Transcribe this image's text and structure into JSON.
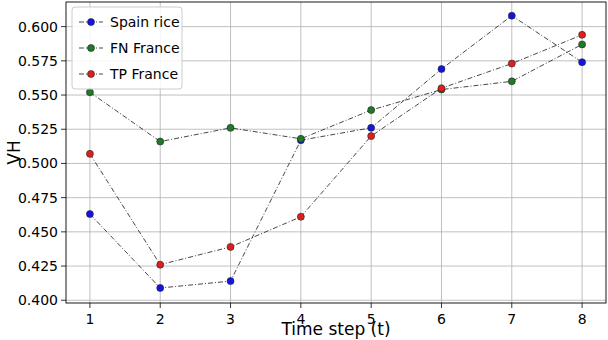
{
  "chart_data": {
    "type": "line",
    "x_label": "Time step (t)",
    "y_label": "VH",
    "x": [
      1,
      2,
      3,
      4,
      5,
      6,
      7,
      8
    ],
    "xlim": [
      0.66,
      8.34
    ],
    "xticks": [
      1,
      2,
      3,
      4,
      5,
      6,
      7,
      8
    ],
    "ylim": [
      0.398,
      0.618
    ],
    "yticks": [
      {
        "value": 0.4,
        "label": "0.400"
      },
      0.425,
      {
        "value": 0.45,
        "label": "0.450"
      },
      0.475,
      {
        "value": 0.5,
        "label": "0.500"
      },
      0.525,
      {
        "value": 0.55,
        "label": "0.550"
      },
      0.575,
      {
        "value": 0.6,
        "label": "0.600"
      }
    ],
    "grid": true,
    "legend": "upper-left",
    "marker": "circle",
    "line_style": "dashdot",
    "series": [
      {
        "name": "Spain rice",
        "color": "#1414e6",
        "values": [
          0.463,
          0.409,
          0.414,
          0.517,
          0.526,
          0.569,
          0.608,
          0.574
        ]
      },
      {
        "name": "FN France",
        "color": "#1f7a26",
        "values": [
          0.552,
          0.516,
          0.526,
          0.518,
          0.539,
          0.554,
          0.56,
          0.587
        ]
      },
      {
        "name": "TP France",
        "color": "#e01e1e",
        "values": [
          0.507,
          0.426,
          0.439,
          0.461,
          0.52,
          0.555,
          0.573,
          0.594
        ]
      }
    ]
  }
}
